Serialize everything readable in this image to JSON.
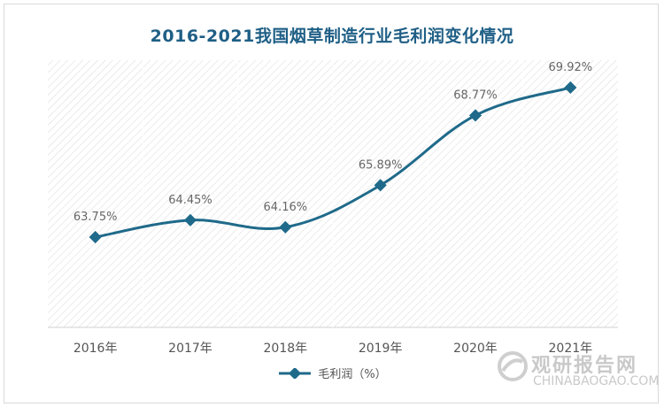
{
  "chart_data": {
    "type": "line",
    "title": "2016-2021我国烟草制造行业毛利润变化情况",
    "categories": [
      "2016年",
      "2017年",
      "2018年",
      "2019年",
      "2020年",
      "2021年"
    ],
    "series": [
      {
        "name": "毛利润（%）",
        "values": [
          63.75,
          64.45,
          64.16,
          65.89,
          68.77,
          69.92
        ],
        "labels": [
          "63.75%",
          "64.45%",
          "64.16%",
          "65.89%",
          "68.77%",
          "69.92%"
        ],
        "color": "#1f6a8a"
      }
    ],
    "grid": false,
    "legend": "bottom",
    "background_pattern": "diagonal-hatch"
  },
  "watermark": {
    "text_cn": "观研报告网",
    "text_en": "CHINABAOGAO.COM"
  }
}
